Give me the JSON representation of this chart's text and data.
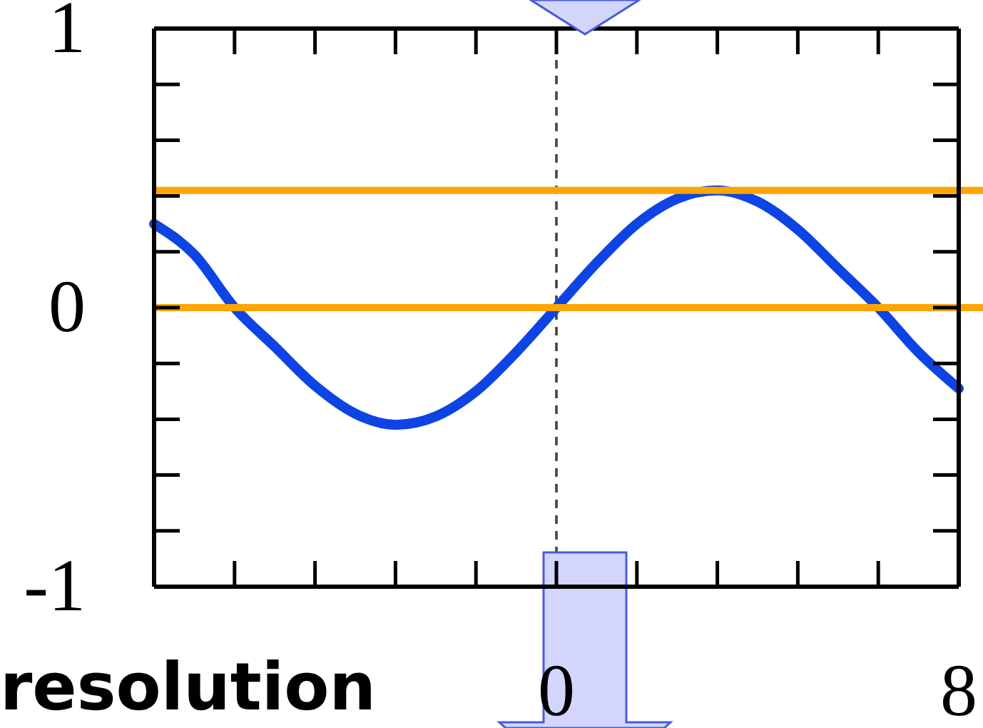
{
  "chart_data": {
    "type": "line",
    "x": [
      -8,
      -7.2,
      -6.4,
      -5.6,
      -4.8,
      -4,
      -3.2,
      -2.4,
      -1.6,
      -0.8,
      0,
      0.8,
      1.6,
      2.4,
      3.2,
      4,
      4.8,
      5.6,
      6.4,
      7.2,
      8
    ],
    "series": [
      {
        "color": "#0d44e3",
        "values": [
          0.3,
          0.19,
          0,
          -0.14,
          -0.28,
          -0.38,
          -0.42,
          -0.39,
          -0.3,
          -0.16,
          0,
          0.16,
          0.3,
          0.39,
          0.42,
          0.38,
          0.28,
          0.14,
          0,
          -0.16,
          -0.29
        ]
      }
    ],
    "xlim": [
      -8,
      8
    ],
    "ylim": [
      -1,
      1
    ],
    "xticks": [
      0,
      8
    ],
    "yticks": [
      -1,
      0,
      1
    ],
    "ref_lines": [
      {
        "axis": "y",
        "value": 0.42,
        "color": "#ffa500"
      },
      {
        "axis": "y",
        "value": 0,
        "color": "#ffa500"
      },
      {
        "axis": "x",
        "value": 0,
        "color": "#444444",
        "line_style": "dashed"
      }
    ],
    "annotations": [
      "resolution"
    ]
  }
}
